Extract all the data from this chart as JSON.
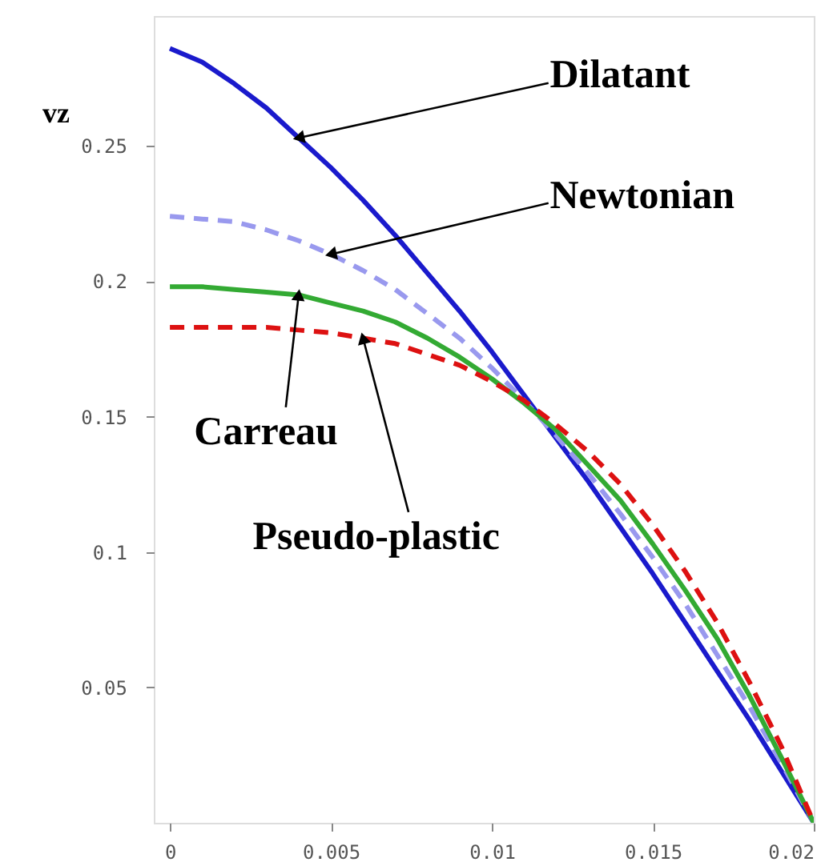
{
  "chart_data": {
    "type": "line",
    "ylabel": "vz",
    "x": [
      0,
      0.001,
      0.002,
      0.003,
      0.004,
      0.005,
      0.006,
      0.007,
      0.008,
      0.009,
      0.01,
      0.011,
      0.012,
      0.013,
      0.014,
      0.015,
      0.016,
      0.017,
      0.018,
      0.019,
      0.02
    ],
    "series": [
      {
        "color": "#1a1acc",
        "line_style": "solid",
        "values": [
          0.286,
          0.281,
          0.273,
          0.264,
          0.253,
          0.242,
          0.23,
          0.217,
          0.203,
          0.189,
          0.174,
          0.158,
          0.142,
          0.126,
          0.109,
          0.092,
          0.074,
          0.056,
          0.038,
          0.019,
          0
        ]
      },
      {
        "color": "#9999ee",
        "line_style": "dashed",
        "values": [
          0.224,
          0.223,
          0.222,
          0.219,
          0.215,
          0.21,
          0.204,
          0.197,
          0.188,
          0.179,
          0.168,
          0.156,
          0.143,
          0.129,
          0.114,
          0.098,
          0.081,
          0.062,
          0.043,
          0.022,
          0
        ]
      },
      {
        "color": "#33aa33",
        "line_style": "solid",
        "values": [
          0.198,
          0.198,
          0.197,
          0.196,
          0.195,
          0.192,
          0.189,
          0.185,
          0.179,
          0.172,
          0.164,
          0.155,
          0.145,
          0.132,
          0.119,
          0.103,
          0.086,
          0.068,
          0.047,
          0.024,
          0
        ]
      },
      {
        "color": "#dd1111",
        "line_style": "dashed",
        "values": [
          0.183,
          0.183,
          0.183,
          0.183,
          0.182,
          0.181,
          0.179,
          0.177,
          0.173,
          0.169,
          0.163,
          0.156,
          0.147,
          0.137,
          0.125,
          0.11,
          0.093,
          0.074,
          0.052,
          0.028,
          0
        ]
      }
    ],
    "annotations": [
      {
        "text": "Dilatant",
        "x": 0.004,
        "y": 0.253
      },
      {
        "text": "Newtonian",
        "x": 0.005,
        "y": 0.21
      },
      {
        "text": "Carreau",
        "x": 0.004,
        "y": 0.195
      },
      {
        "text": "Pseudo-plastic",
        "x": 0.006,
        "y": 0.179
      }
    ],
    "xlim": [
      -0.0005,
      0.02
    ],
    "ylim": [
      0,
      0.298
    ],
    "xticks": [
      0,
      0.005,
      0.01,
      0.015,
      0.02
    ],
    "yticks": [
      0.05,
      0.1,
      0.15,
      0.2,
      0.25
    ],
    "grid": false,
    "marker": "none"
  }
}
